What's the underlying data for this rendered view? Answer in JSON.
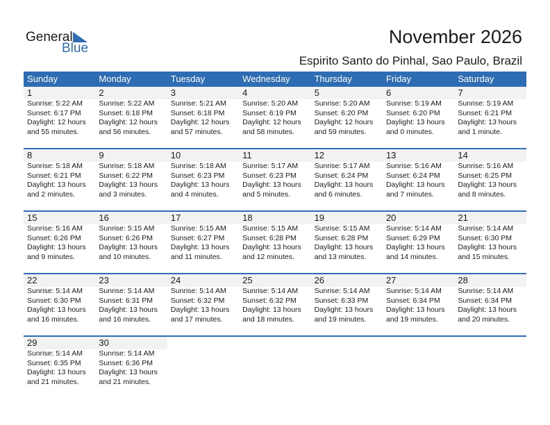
{
  "logo": {
    "general": "General",
    "blue": "Blue"
  },
  "header": {
    "title": "November 2026",
    "location": "Espirito Santo do Pinhal, Sao Paulo, Brazil"
  },
  "colors": {
    "accent": "#2E6DB4",
    "day_number_bg": "#f2f2f2"
  },
  "weekdays": [
    "Sunday",
    "Monday",
    "Tuesday",
    "Wednesday",
    "Thursday",
    "Friday",
    "Saturday"
  ],
  "days": [
    {
      "d": "1",
      "rise": "Sunrise: 5:22 AM",
      "set": "Sunset: 6:17 PM",
      "dl1": "Daylight: 12 hours",
      "dl2": "and 55 minutes."
    },
    {
      "d": "2",
      "rise": "Sunrise: 5:22 AM",
      "set": "Sunset: 6:18 PM",
      "dl1": "Daylight: 12 hours",
      "dl2": "and 56 minutes."
    },
    {
      "d": "3",
      "rise": "Sunrise: 5:21 AM",
      "set": "Sunset: 6:18 PM",
      "dl1": "Daylight: 12 hours",
      "dl2": "and 57 minutes."
    },
    {
      "d": "4",
      "rise": "Sunrise: 5:20 AM",
      "set": "Sunset: 6:19 PM",
      "dl1": "Daylight: 12 hours",
      "dl2": "and 58 minutes."
    },
    {
      "d": "5",
      "rise": "Sunrise: 5:20 AM",
      "set": "Sunset: 6:20 PM",
      "dl1": "Daylight: 12 hours",
      "dl2": "and 59 minutes."
    },
    {
      "d": "6",
      "rise": "Sunrise: 5:19 AM",
      "set": "Sunset: 6:20 PM",
      "dl1": "Daylight: 13 hours",
      "dl2": "and 0 minutes."
    },
    {
      "d": "7",
      "rise": "Sunrise: 5:19 AM",
      "set": "Sunset: 6:21 PM",
      "dl1": "Daylight: 13 hours",
      "dl2": "and 1 minute."
    },
    {
      "d": "8",
      "rise": "Sunrise: 5:18 AM",
      "set": "Sunset: 6:21 PM",
      "dl1": "Daylight: 13 hours",
      "dl2": "and 2 minutes."
    },
    {
      "d": "9",
      "rise": "Sunrise: 5:18 AM",
      "set": "Sunset: 6:22 PM",
      "dl1": "Daylight: 13 hours",
      "dl2": "and 3 minutes."
    },
    {
      "d": "10",
      "rise": "Sunrise: 5:18 AM",
      "set": "Sunset: 6:23 PM",
      "dl1": "Daylight: 13 hours",
      "dl2": "and 4 minutes."
    },
    {
      "d": "11",
      "rise": "Sunrise: 5:17 AM",
      "set": "Sunset: 6:23 PM",
      "dl1": "Daylight: 13 hours",
      "dl2": "and 5 minutes."
    },
    {
      "d": "12",
      "rise": "Sunrise: 5:17 AM",
      "set": "Sunset: 6:24 PM",
      "dl1": "Daylight: 13 hours",
      "dl2": "and 6 minutes."
    },
    {
      "d": "13",
      "rise": "Sunrise: 5:16 AM",
      "set": "Sunset: 6:24 PM",
      "dl1": "Daylight: 13 hours",
      "dl2": "and 7 minutes."
    },
    {
      "d": "14",
      "rise": "Sunrise: 5:16 AM",
      "set": "Sunset: 6:25 PM",
      "dl1": "Daylight: 13 hours",
      "dl2": "and 8 minutes."
    },
    {
      "d": "15",
      "rise": "Sunrise: 5:16 AM",
      "set": "Sunset: 6:26 PM",
      "dl1": "Daylight: 13 hours",
      "dl2": "and 9 minutes."
    },
    {
      "d": "16",
      "rise": "Sunrise: 5:15 AM",
      "set": "Sunset: 6:26 PM",
      "dl1": "Daylight: 13 hours",
      "dl2": "and 10 minutes."
    },
    {
      "d": "17",
      "rise": "Sunrise: 5:15 AM",
      "set": "Sunset: 6:27 PM",
      "dl1": "Daylight: 13 hours",
      "dl2": "and 11 minutes."
    },
    {
      "d": "18",
      "rise": "Sunrise: 5:15 AM",
      "set": "Sunset: 6:28 PM",
      "dl1": "Daylight: 13 hours",
      "dl2": "and 12 minutes."
    },
    {
      "d": "19",
      "rise": "Sunrise: 5:15 AM",
      "set": "Sunset: 6:28 PM",
      "dl1": "Daylight: 13 hours",
      "dl2": "and 13 minutes."
    },
    {
      "d": "20",
      "rise": "Sunrise: 5:14 AM",
      "set": "Sunset: 6:29 PM",
      "dl1": "Daylight: 13 hours",
      "dl2": "and 14 minutes."
    },
    {
      "d": "21",
      "rise": "Sunrise: 5:14 AM",
      "set": "Sunset: 6:30 PM",
      "dl1": "Daylight: 13 hours",
      "dl2": "and 15 minutes."
    },
    {
      "d": "22",
      "rise": "Sunrise: 5:14 AM",
      "set": "Sunset: 6:30 PM",
      "dl1": "Daylight: 13 hours",
      "dl2": "and 16 minutes."
    },
    {
      "d": "23",
      "rise": "Sunrise: 5:14 AM",
      "set": "Sunset: 6:31 PM",
      "dl1": "Daylight: 13 hours",
      "dl2": "and 16 minutes."
    },
    {
      "d": "24",
      "rise": "Sunrise: 5:14 AM",
      "set": "Sunset: 6:32 PM",
      "dl1": "Daylight: 13 hours",
      "dl2": "and 17 minutes."
    },
    {
      "d": "25",
      "rise": "Sunrise: 5:14 AM",
      "set": "Sunset: 6:32 PM",
      "dl1": "Daylight: 13 hours",
      "dl2": "and 18 minutes."
    },
    {
      "d": "26",
      "rise": "Sunrise: 5:14 AM",
      "set": "Sunset: 6:33 PM",
      "dl1": "Daylight: 13 hours",
      "dl2": "and 19 minutes."
    },
    {
      "d": "27",
      "rise": "Sunrise: 5:14 AM",
      "set": "Sunset: 6:34 PM",
      "dl1": "Daylight: 13 hours",
      "dl2": "and 19 minutes."
    },
    {
      "d": "28",
      "rise": "Sunrise: 5:14 AM",
      "set": "Sunset: 6:34 PM",
      "dl1": "Daylight: 13 hours",
      "dl2": "and 20 minutes."
    },
    {
      "d": "29",
      "rise": "Sunrise: 5:14 AM",
      "set": "Sunset: 6:35 PM",
      "dl1": "Daylight: 13 hours",
      "dl2": "and 21 minutes."
    },
    {
      "d": "30",
      "rise": "Sunrise: 5:14 AM",
      "set": "Sunset: 6:36 PM",
      "dl1": "Daylight: 13 hours",
      "dl2": "and 21 minutes."
    }
  ]
}
